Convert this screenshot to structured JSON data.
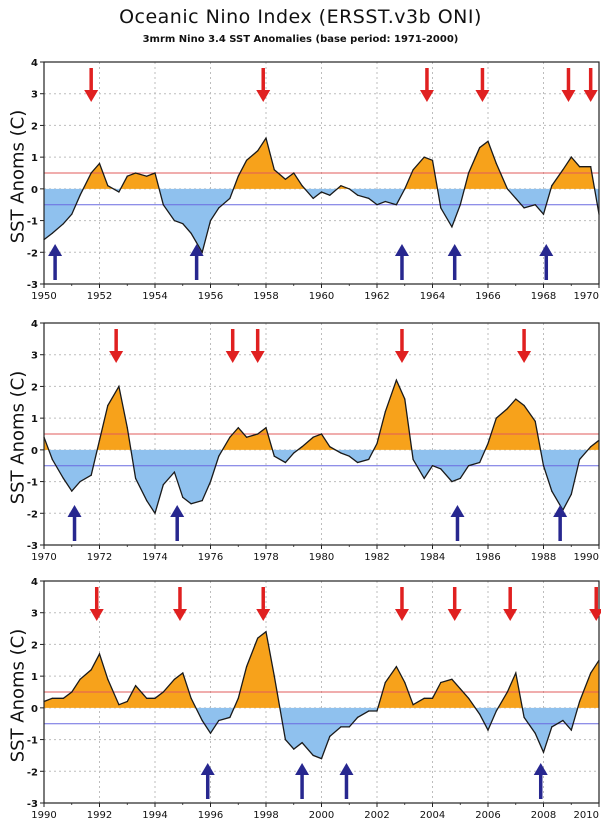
{
  "header": {
    "title": "Oceanic Nino Index (ERSST.v3b ONI)",
    "subtitle": "3mrm Nino 3.4 SST Anomalies (base period: 1971-2000)"
  },
  "colors": {
    "positive_fill": "#f7a21b",
    "negative_fill": "#8fc1ee",
    "upper_threshold_line": "#e25b5b",
    "lower_threshold_line": "#6a6ae0",
    "el_nino_arrow": "#e02020",
    "la_nina_arrow": "#27278f",
    "grid": "#bdbdbd"
  },
  "chart_data": [
    {
      "type": "area",
      "ylabel": "SST Anoms (C)",
      "xlim": [
        1950,
        1970
      ],
      "ylim": [
        -3,
        4
      ],
      "xticks": [
        "1950",
        "1952",
        "1954",
        "1956",
        "1958",
        "1960",
        "1962",
        "1964",
        "1966",
        "1968",
        "1970"
      ],
      "yticks": [
        "-3",
        "-2",
        "-1",
        "0",
        "1",
        "2",
        "3",
        "4"
      ],
      "thresholds": [
        0.5,
        -0.5
      ],
      "grid": true,
      "x": [
        1950.0,
        1950.3,
        1950.7,
        1951.0,
        1951.3,
        1951.7,
        1952.0,
        1952.3,
        1952.7,
        1953.0,
        1953.3,
        1953.7,
        1954.0,
        1954.3,
        1954.7,
        1955.0,
        1955.3,
        1955.7,
        1956.0,
        1956.3,
        1956.7,
        1957.0,
        1957.3,
        1957.7,
        1958.0,
        1958.3,
        1958.7,
        1959.0,
        1959.3,
        1959.7,
        1960.0,
        1960.3,
        1960.7,
        1961.0,
        1961.3,
        1961.7,
        1962.0,
        1962.3,
        1962.7,
        1963.0,
        1963.3,
        1963.7,
        1964.0,
        1964.3,
        1964.7,
        1965.0,
        1965.3,
        1965.7,
        1966.0,
        1966.3,
        1966.7,
        1967.0,
        1967.3,
        1967.7,
        1968.0,
        1968.3,
        1968.7,
        1969.0,
        1969.3,
        1969.7,
        1970.0
      ],
      "values": [
        -1.6,
        -1.4,
        -1.1,
        -0.8,
        -0.2,
        0.5,
        0.8,
        0.1,
        -0.1,
        0.4,
        0.5,
        0.4,
        0.5,
        -0.5,
        -1.0,
        -1.1,
        -1.4,
        -2.0,
        -1.0,
        -0.6,
        -0.3,
        0.4,
        0.9,
        1.2,
        1.6,
        0.6,
        0.3,
        0.5,
        0.1,
        -0.3,
        -0.1,
        -0.2,
        0.1,
        0.0,
        -0.2,
        -0.3,
        -0.5,
        -0.4,
        -0.5,
        0.0,
        0.6,
        1.0,
        0.9,
        -0.6,
        -1.2,
        -0.5,
        0.5,
        1.3,
        1.5,
        0.8,
        0.0,
        -0.3,
        -0.6,
        -0.5,
        -0.8,
        0.1,
        0.6,
        1.0,
        0.7,
        0.7,
        -0.8
      ],
      "el_nino_arrows": [
        1951.7,
        1957.9,
        1963.8,
        1965.8,
        1968.9,
        1969.7
      ],
      "la_nina_arrows": [
        1950.4,
        1955.5,
        1962.9,
        1964.8,
        1968.1
      ]
    },
    {
      "type": "area",
      "ylabel": "SST Anoms (C)",
      "xlim": [
        1970,
        1990
      ],
      "ylim": [
        -3,
        4
      ],
      "xticks": [
        "1970",
        "1972",
        "1974",
        "1976",
        "1978",
        "1980",
        "1982",
        "1984",
        "1986",
        "1988",
        "1990"
      ],
      "yticks": [
        "-3",
        "-2",
        "-1",
        "0",
        "1",
        "2",
        "3",
        "4"
      ],
      "thresholds": [
        0.5,
        -0.5
      ],
      "grid": true,
      "x": [
        1970.0,
        1970.3,
        1970.7,
        1971.0,
        1971.3,
        1971.7,
        1972.0,
        1972.3,
        1972.7,
        1973.0,
        1973.3,
        1973.7,
        1974.0,
        1974.3,
        1974.7,
        1975.0,
        1975.3,
        1975.7,
        1976.0,
        1976.3,
        1976.7,
        1977.0,
        1977.3,
        1977.7,
        1978.0,
        1978.3,
        1978.7,
        1979.0,
        1979.3,
        1979.7,
        1980.0,
        1980.3,
        1980.7,
        1981.0,
        1981.3,
        1981.7,
        1982.0,
        1982.3,
        1982.7,
        1983.0,
        1983.3,
        1983.7,
        1984.0,
        1984.3,
        1984.7,
        1985.0,
        1985.3,
        1985.7,
        1986.0,
        1986.3,
        1986.7,
        1987.0,
        1987.3,
        1987.7,
        1988.0,
        1988.3,
        1988.7,
        1989.0,
        1989.3,
        1989.7,
        1990.0
      ],
      "values": [
        0.4,
        -0.3,
        -0.9,
        -1.3,
        -1.0,
        -0.8,
        0.3,
        1.4,
        2.0,
        0.7,
        -0.9,
        -1.6,
        -2.0,
        -1.1,
        -0.7,
        -1.5,
        -1.7,
        -1.6,
        -1.0,
        -0.2,
        0.4,
        0.7,
        0.4,
        0.5,
        0.7,
        -0.2,
        -0.4,
        -0.1,
        0.1,
        0.4,
        0.5,
        0.1,
        -0.1,
        -0.2,
        -0.4,
        -0.3,
        0.2,
        1.2,
        2.2,
        1.6,
        -0.3,
        -0.9,
        -0.5,
        -0.6,
        -1.0,
        -0.9,
        -0.5,
        -0.4,
        0.2,
        1.0,
        1.3,
        1.6,
        1.4,
        0.9,
        -0.5,
        -1.3,
        -1.9,
        -1.4,
        -0.3,
        0.1,
        0.3
      ],
      "el_nino_arrows": [
        1972.6,
        1976.8,
        1977.7,
        1982.9,
        1987.3
      ],
      "la_nina_arrows": [
        1971.1,
        1974.8,
        1984.9,
        1988.6
      ]
    },
    {
      "type": "area",
      "ylabel": "SST Anoms (C)",
      "xlim": [
        1990,
        2010
      ],
      "ylim": [
        -3,
        4
      ],
      "xticks": [
        "1990",
        "1992",
        "1994",
        "1996",
        "1998",
        "2000",
        "2002",
        "2004",
        "2006",
        "2008",
        "2010"
      ],
      "yticks": [
        "-3",
        "-2",
        "-1",
        "0",
        "1",
        "2",
        "3",
        "4"
      ],
      "thresholds": [
        0.5,
        -0.5
      ],
      "grid": true,
      "x": [
        1990.0,
        1990.3,
        1990.7,
        1991.0,
        1991.3,
        1991.7,
        1992.0,
        1992.3,
        1992.7,
        1993.0,
        1993.3,
        1993.7,
        1994.0,
        1994.3,
        1994.7,
        1995.0,
        1995.3,
        1995.7,
        1996.0,
        1996.3,
        1996.7,
        1997.0,
        1997.3,
        1997.7,
        1998.0,
        1998.3,
        1998.7,
        1999.0,
        1999.3,
        1999.7,
        2000.0,
        2000.3,
        2000.7,
        2001.0,
        2001.3,
        2001.7,
        2002.0,
        2002.3,
        2002.7,
        2003.0,
        2003.3,
        2003.7,
        2004.0,
        2004.3,
        2004.7,
        2005.0,
        2005.3,
        2005.7,
        2006.0,
        2006.3,
        2006.7,
        2007.0,
        2007.3,
        2007.7,
        2008.0,
        2008.3,
        2008.7,
        2009.0,
        2009.3,
        2009.7,
        2010.0
      ],
      "values": [
        0.2,
        0.3,
        0.3,
        0.5,
        0.9,
        1.2,
        1.7,
        0.9,
        0.1,
        0.2,
        0.7,
        0.3,
        0.3,
        0.5,
        0.9,
        1.1,
        0.3,
        -0.4,
        -0.8,
        -0.4,
        -0.3,
        0.3,
        1.3,
        2.2,
        2.4,
        1.0,
        -1.0,
        -1.3,
        -1.1,
        -1.5,
        -1.6,
        -0.9,
        -0.6,
        -0.6,
        -0.3,
        -0.1,
        -0.1,
        0.8,
        1.3,
        0.8,
        0.1,
        0.3,
        0.3,
        0.8,
        0.9,
        0.6,
        0.3,
        -0.2,
        -0.7,
        -0.1,
        0.5,
        1.1,
        -0.3,
        -0.8,
        -1.4,
        -0.6,
        -0.4,
        -0.7,
        0.2,
        1.1,
        1.5
      ],
      "el_nino_arrows": [
        1991.9,
        1994.9,
        1997.9,
        2002.9,
        2004.8,
        2006.8,
        2009.9
      ],
      "la_nina_arrows": [
        1995.9,
        1999.3,
        2000.9,
        2007.9
      ]
    }
  ]
}
